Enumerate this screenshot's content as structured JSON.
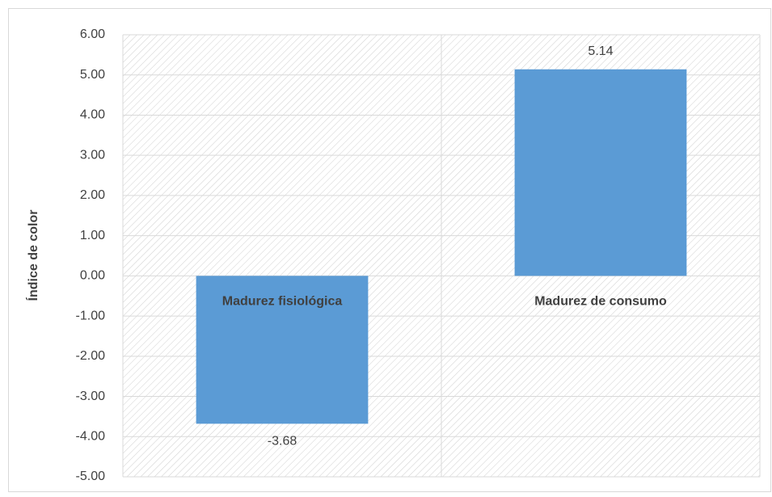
{
  "chart_data": {
    "type": "bar",
    "y_label": "Índice de color",
    "categories": [
      "Madurez fisiológica",
      "Madurez de consumo"
    ],
    "values": [
      -3.68,
      5.14
    ],
    "color": "#5b9bd5",
    "ylim": [
      -5,
      6
    ],
    "yticks": [
      {
        "value": -5,
        "label": "-5.00"
      },
      {
        "value": -4,
        "label": "-4.00"
      },
      {
        "value": -3,
        "label": "-3.00"
      },
      {
        "value": -2,
        "label": "-2.00"
      },
      {
        "value": -1,
        "label": "-1.00"
      },
      {
        "value": 0,
        "label": "0.00"
      },
      {
        "value": 1,
        "label": "1.00"
      },
      {
        "value": 2,
        "label": "2.00"
      },
      {
        "value": 3,
        "label": "3.00"
      },
      {
        "value": 4,
        "label": "4.00"
      },
      {
        "value": 5,
        "label": "5.00"
      },
      {
        "value": 6,
        "label": "6.00"
      }
    ],
    "grid": true
  }
}
